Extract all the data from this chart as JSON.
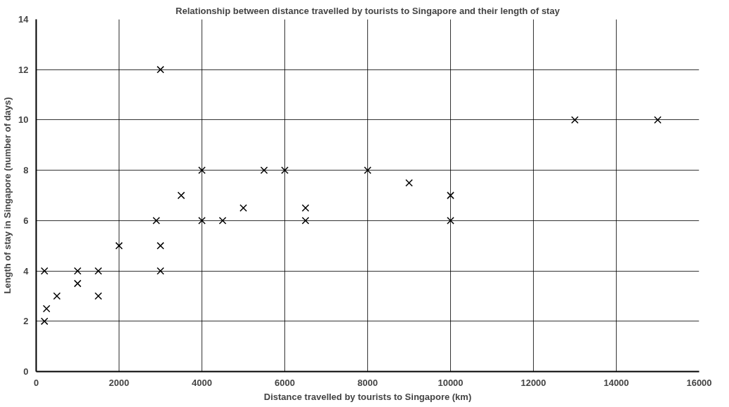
{
  "chart_data": {
    "type": "scatter",
    "title": "Relationship between distance travelled by tourists to Singapore and their length of stay",
    "xlabel": "Distance travelled by tourists to Singapore (km)",
    "ylabel": "Length of stay in Singapore (number of days)",
    "x": [
      200,
      200,
      250,
      500,
      1000,
      1000,
      1500,
      1500,
      2000,
      2900,
      3000,
      3000,
      3000,
      3500,
      4000,
      4000,
      4500,
      5000,
      5500,
      6000,
      6500,
      6500,
      8000,
      9000,
      10000,
      10000,
      13000,
      15000
    ],
    "values": [
      4,
      2,
      2.5,
      3,
      4,
      3.5,
      4,
      3,
      5,
      6,
      12,
      5,
      4,
      7,
      8,
      6,
      6,
      6.5,
      8,
      8,
      6.5,
      6,
      8,
      7.5,
      7,
      6,
      10,
      10
    ],
    "color": "#000000",
    "marker": "cross",
    "xlim": [
      0,
      16000
    ],
    "ylim": [
      0,
      14
    ],
    "xticks": [
      0,
      2000,
      4000,
      6000,
      8000,
      10000,
      12000,
      14000,
      16000
    ],
    "yticks": [
      0,
      2,
      4,
      6,
      8,
      10,
      12,
      14
    ],
    "grid": true
  }
}
